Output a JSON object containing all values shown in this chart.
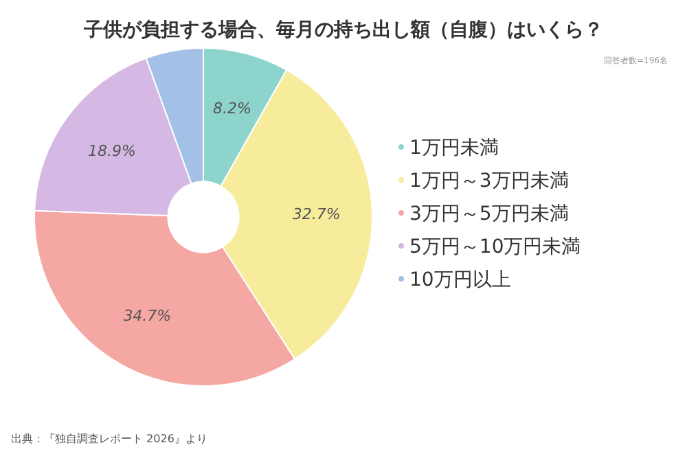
{
  "chart_data": {
    "type": "donut",
    "title": "子供が負担する場合、毎月の持ち出し額（自腹）はいくら？",
    "categories": [
      "1万円未満",
      "1万円～3万円未満",
      "3万円～5万円未満",
      "5万円～10万円未満",
      "10万円以上"
    ],
    "values": [
      8.2,
      32.7,
      34.7,
      18.9,
      5.5
    ],
    "colors": [
      "#8dd5cc",
      "#f7ec9b",
      "#f4a7a3",
      "#d5b8e3",
      "#a3c0e6"
    ],
    "value_labels": [
      "8.2%",
      "32.7%",
      "34.7%",
      "18.9%",
      null
    ],
    "legend": "right",
    "annotations": [
      "回答者数=196名",
      "出典：『独自調査レポート 2026』より"
    ]
  }
}
